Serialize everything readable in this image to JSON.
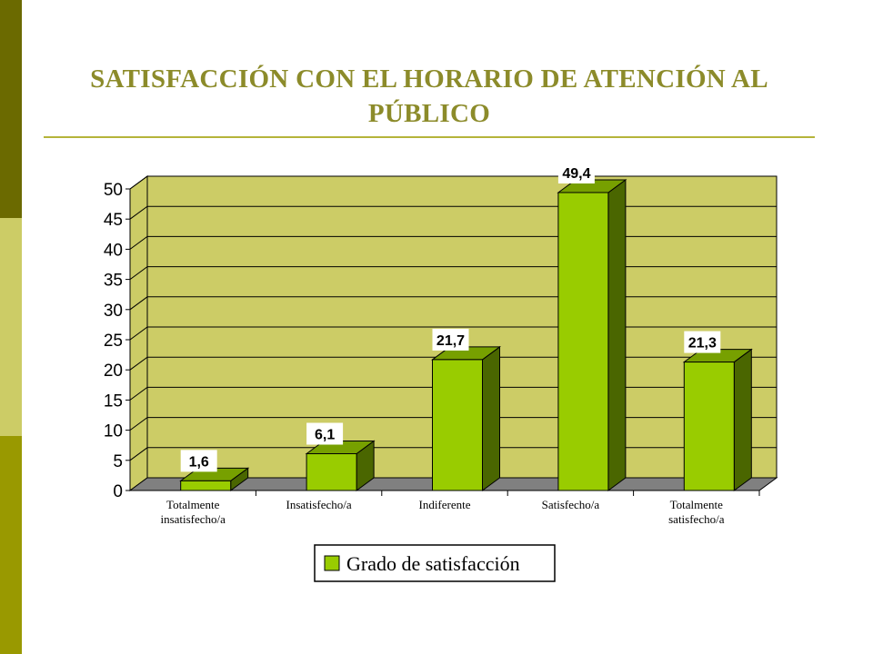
{
  "colors": {
    "sidebar_dark": "#6b6a00",
    "sidebar_light": "#cccc66",
    "sidebar_mid": "#999900",
    "title": "#8c8b2a",
    "wall": "#cccc66",
    "floor": "#808080",
    "bar_front": "#99cc00",
    "bar_side": "#4a6600",
    "bar_top": "#77a000"
  },
  "slide": {
    "title": "SATISFACCIÓN CON EL HORARIO DE ATENCIÓN AL PÚBLICO"
  },
  "chart_data": {
    "type": "bar",
    "categories": [
      [
        "Totalmente",
        "insatisfecho/a"
      ],
      [
        "Insatisfecho/a"
      ],
      [
        "Indiferente"
      ],
      [
        "Satisfecho/a"
      ],
      [
        "Totalmente",
        "satisfecho/a"
      ]
    ],
    "series": [
      {
        "name": "Grado de satisfacción",
        "values": [
          1.6,
          6.1,
          21.7,
          49.4,
          21.3
        ],
        "labels": [
          "1,6",
          "6,1",
          "21,7",
          "49,4",
          "21,3"
        ]
      }
    ],
    "ylim": [
      0,
      50
    ],
    "yticks": [
      0,
      5,
      10,
      15,
      20,
      25,
      30,
      35,
      40,
      45,
      50
    ],
    "grid": true,
    "legend": "bottom"
  }
}
